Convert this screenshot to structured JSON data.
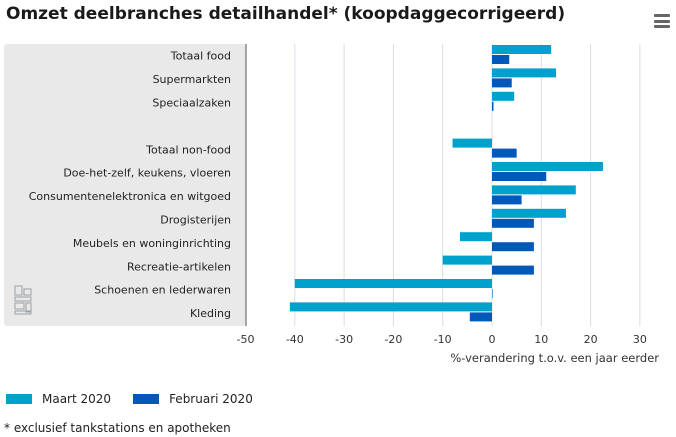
{
  "header": {
    "title": "Omzet deelbranches detailhandel* (koopdaggecorrigeerd)",
    "menu_icon": "hamburger-menu-icon"
  },
  "colors": {
    "maart": "#00A1CD",
    "februari": "#0058B8",
    "plot_bg": "#E9E9E9",
    "grid": "#D8DDE4"
  },
  "logo": {
    "text": "cbs"
  },
  "chart_data": {
    "type": "bar",
    "orientation": "horizontal",
    "categories": [
      "Totaal food",
      "Supermarkten",
      "Speciaalzaken",
      "",
      "Totaal non-food",
      "Doe-het-zelf, keukens, vloeren",
      "Consumentenelektronica en witgoed",
      "Drogisterijen",
      "Meubels en woninginrichting",
      "Recreatie-artikelen",
      "Schoenen en lederwaren",
      "Kleding"
    ],
    "series": [
      {
        "name": "Maart 2020",
        "values": [
          12,
          13,
          4.5,
          null,
          -8,
          22.5,
          17,
          15,
          -6.5,
          -10,
          -40,
          -41
        ]
      },
      {
        "name": "Februari 2020",
        "values": [
          3.5,
          4,
          0.3,
          null,
          5,
          11,
          6,
          8.5,
          8.5,
          8.5,
          0,
          -4.5
        ]
      }
    ],
    "x_ticks": [
      "-50",
      "-40",
      "-30",
      "-20",
      "-10",
      "0",
      "10",
      "20",
      "30"
    ],
    "xlim": [
      -50,
      30
    ],
    "xlabel": "%-verandering t.o.v. een jaar eerder",
    "ylabel": "",
    "legend": "bottom-left"
  },
  "legend": {
    "items": [
      {
        "label": "Maart 2020"
      },
      {
        "label": "Februari 2020"
      }
    ]
  },
  "footnote": "* exclusief tankstations en apotheken"
}
